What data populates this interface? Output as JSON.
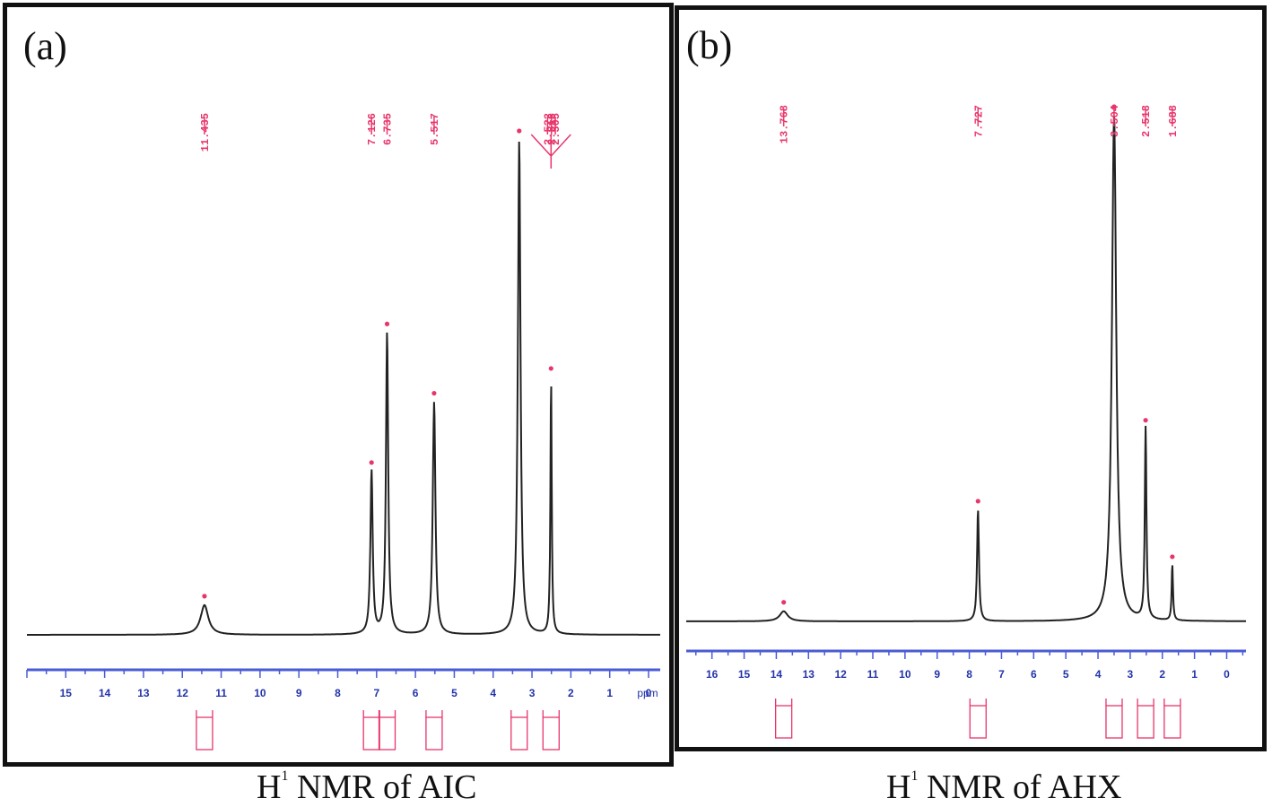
{
  "chart_data": [
    {
      "type": "line",
      "panel_label": "(a)",
      "caption": {
        "prefix": "H",
        "sup": "1",
        "text": "NMR of AIC"
      },
      "x_unit": "ppm",
      "x_ticks": [
        15,
        14,
        13,
        12,
        11,
        10,
        9,
        8,
        7,
        6,
        5,
        4,
        3,
        2,
        1,
        0
      ],
      "xlim": [
        16.0,
        -0.3
      ],
      "peak_labels": [
        "11.435",
        "7.126",
        "6.735",
        "5.517",
        "2.522",
        "2.513",
        "2.505"
      ],
      "peaks": [
        {
          "ppm": 11.43,
          "height": 0.06,
          "width": 0.12
        },
        {
          "ppm": 7.13,
          "height": 0.33,
          "width": 0.035
        },
        {
          "ppm": 6.73,
          "height": 0.61,
          "width": 0.035
        },
        {
          "ppm": 5.52,
          "height": 0.47,
          "width": 0.04
        },
        {
          "ppm": 3.33,
          "height": 1.0,
          "width": 0.04
        },
        {
          "ppm": 2.51,
          "height": 0.52,
          "width": 0.02
        }
      ],
      "integral_ppm": [
        11.43,
        7.13,
        6.73,
        5.52,
        3.33,
        2.51
      ],
      "colors": {
        "axis": "#4a5bd6",
        "label": "#e8356b",
        "spectrum": "#222222"
      }
    },
    {
      "type": "line",
      "panel_label": "(b)",
      "caption": {
        "prefix": "H",
        "sup": "1",
        "text": "NMR of AHX"
      },
      "x_unit": "",
      "x_ticks": [
        16,
        15,
        14,
        13,
        12,
        11,
        10,
        9,
        8,
        7,
        6,
        5,
        4,
        3,
        2,
        1,
        0
      ],
      "xlim": [
        16.8,
        -0.6
      ],
      "peak_labels": [
        "13.768",
        "7.727",
        "3.504",
        "2.518",
        "1.688"
      ],
      "peaks": [
        {
          "ppm": 13.77,
          "height": 0.02,
          "width": 0.15
        },
        {
          "ppm": 7.73,
          "height": 0.22,
          "width": 0.035
        },
        {
          "ppm": 3.5,
          "height": 1.0,
          "width": 0.08
        },
        {
          "ppm": 2.52,
          "height": 0.38,
          "width": 0.03
        },
        {
          "ppm": 1.69,
          "height": 0.11,
          "width": 0.025
        }
      ],
      "integral_ppm": [
        13.77,
        7.73,
        3.5,
        2.52,
        1.69
      ],
      "colors": {
        "axis": "#4a5bd6",
        "label": "#e8356b",
        "spectrum": "#222222"
      }
    }
  ]
}
